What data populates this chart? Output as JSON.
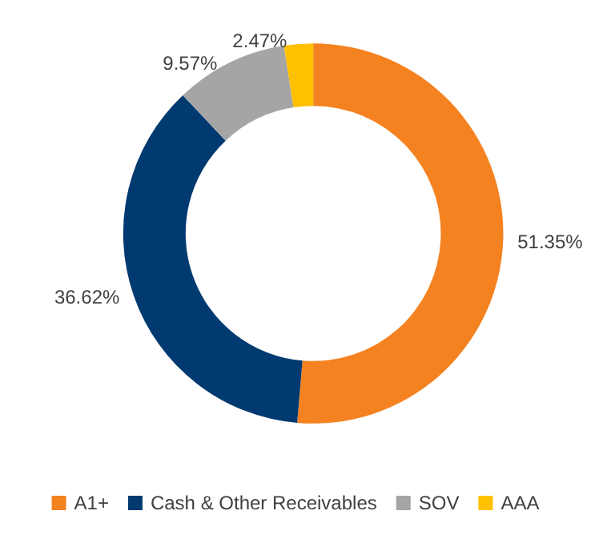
{
  "chart_data": {
    "type": "donut",
    "categories": [
      "A1+",
      "Cash & Other Receivables",
      "SOV",
      "AAA"
    ],
    "values": [
      51.35,
      36.62,
      9.57,
      2.47
    ],
    "colors": [
      "#f58220",
      "#003a70",
      "#a5a5a5",
      "#ffc000"
    ],
    "value_labels": [
      "51.35%",
      "36.62%",
      "9.57%",
      "2.47%"
    ],
    "legend": "bottom"
  }
}
